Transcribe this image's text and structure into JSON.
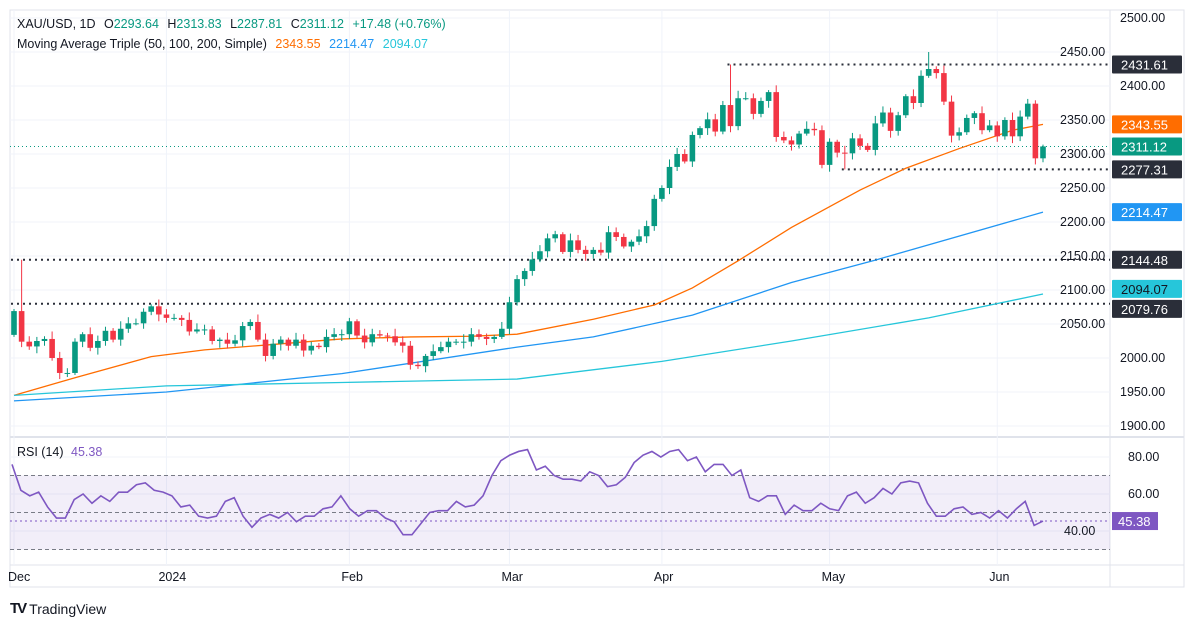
{
  "header": {
    "symbol": "XAU/USD, 1D",
    "open_label": "O",
    "open": "2293.64",
    "high_label": "H",
    "high": "2313.83",
    "low_label": "L",
    "low": "2287.81",
    "close_label": "C",
    "close": "2311.12",
    "change": "+17.48 (+0.76%)",
    "ma_title": "Moving Average Triple (50, 100, 200, Simple)",
    "ma50": "2343.55",
    "ma100": "2214.47",
    "ma200": "2094.07"
  },
  "rsi_legend": {
    "title": "RSI (14)",
    "value": "45.38"
  },
  "brand": {
    "logo": "TV",
    "name": "TradingView"
  },
  "colors": {
    "up": "#089981",
    "down": "#f23645",
    "ma50": "#ff6d00",
    "ma100": "#2196f3",
    "ma200": "#26c6da",
    "rsi": "#7e57c2",
    "level": "#2a2e39"
  },
  "chart_data": [
    {
      "type": "candlestick",
      "title": "XAU/USD, 1D",
      "ylim": [
        1900,
        2500
      ],
      "y_ticks": [
        "2500.00",
        "2450.00",
        "2400.00",
        "2350.00",
        "2300.00",
        "2250.00",
        "2200.00",
        "2150.00",
        "2100.00",
        "2050.00",
        "2000.00",
        "1950.00",
        "1900.00"
      ],
      "x_ticks": [
        {
          "label": "Dec",
          "bar": 0
        },
        {
          "label": "2024",
          "bar": 20
        },
        {
          "label": "Feb",
          "bar": 44
        },
        {
          "label": "Mar",
          "bar": 65
        },
        {
          "label": "Apr",
          "bar": 85
        },
        {
          "label": "May",
          "bar": 107
        },
        {
          "label": "Jun",
          "bar": 129
        }
      ],
      "first_open": 2034,
      "closes": [
        2069,
        2024,
        2017,
        2025,
        2028,
        2000,
        1978,
        1978,
        2024,
        2035,
        2015,
        2025,
        2040,
        2027,
        2043,
        2051,
        2051,
        2068,
        2076,
        2064,
        2059,
        2059,
        2056,
        2039,
        2042,
        2042,
        2025,
        2027,
        2021,
        2026,
        2047,
        2053,
        2027,
        2003,
        2021,
        2027,
        2018,
        2027,
        2011,
        2018,
        2016,
        2031,
        2035,
        2035,
        2054,
        2033,
        2023,
        2035,
        2033,
        2032,
        2023,
        2018,
        1990,
        1988,
        2003,
        2010,
        2016,
        2024,
        2024,
        2024,
        2035,
        2031,
        2028,
        2031,
        2043,
        2082,
        2116,
        2128,
        2145,
        2157,
        2176,
        2182,
        2156,
        2173,
        2159,
        2153,
        2159,
        2155,
        2185,
        2178,
        2164,
        2171,
        2179,
        2194,
        2234,
        2250,
        2281,
        2300,
        2289,
        2328,
        2338,
        2351,
        2333,
        2372,
        2341,
        2382,
        2382,
        2359,
        2378,
        2391,
        2325,
        2320,
        2314,
        2330,
        2337,
        2335,
        2284,
        2318,
        2302,
        2301,
        2323,
        2312,
        2306,
        2345,
        2361,
        2334,
        2357,
        2385,
        2375,
        2415,
        2425,
        2419,
        2377,
        2327,
        2332,
        2353,
        2360,
        2335,
        2342,
        2326,
        2350,
        2326,
        2355,
        2374,
        2293.64,
        2311.12
      ],
      "overrides": [
        {
          "bar": 1,
          "high": 2144.48
        },
        {
          "bar": 94,
          "high": 2431.61
        },
        {
          "bar": 120,
          "high": 2450
        },
        {
          "bar": 109,
          "low": 2277.31
        },
        {
          "bar": 135,
          "open": 2293.64,
          "high": 2313.83,
          "low": 2287.81,
          "close": 2311.12
        }
      ],
      "moving_averages": [
        {
          "name": "SMA 50",
          "last": "2343.55",
          "color_key": "ma50",
          "points": [
            [
              0,
              1945
            ],
            [
              8,
              1971
            ],
            [
              18,
              2002
            ],
            [
              25,
              2012
            ],
            [
              33,
              2019
            ],
            [
              43,
              2028
            ],
            [
              52,
              2031
            ],
            [
              60,
              2032
            ],
            [
              66,
              2035
            ],
            [
              76,
              2057
            ],
            [
              84,
              2078
            ],
            [
              89,
              2103
            ],
            [
              95,
              2143
            ],
            [
              102,
              2192
            ],
            [
              111,
              2247
            ],
            [
              117,
              2279
            ],
            [
              124,
              2308
            ],
            [
              131,
              2335
            ],
            [
              135,
              2343.55
            ]
          ]
        },
        {
          "name": "SMA 100",
          "last": "2214.47",
          "color_key": "ma100",
          "points": [
            [
              0,
              1937
            ],
            [
              20,
              1950
            ],
            [
              43,
              1977
            ],
            [
              66,
              2016
            ],
            [
              76,
              2031
            ],
            [
              89,
              2063
            ],
            [
              102,
              2111
            ],
            [
              113,
              2144
            ],
            [
              135,
              2214.47
            ]
          ]
        },
        {
          "name": "SMA 200",
          "last": "2094.07",
          "color_key": "ma200",
          "points": [
            [
              0,
              1945
            ],
            [
              20,
              1959
            ],
            [
              43,
              1964
            ],
            [
              66,
              1969
            ],
            [
              85,
              1995
            ],
            [
              102,
              2025
            ],
            [
              120,
              2059
            ],
            [
              135,
              2094.07
            ]
          ]
        }
      ],
      "levels": [
        {
          "value": 2431.61,
          "label": "2431.61",
          "from_bar": 94
        },
        {
          "value": 2277.31,
          "label": "2277.31",
          "from_bar": 109
        },
        {
          "value": 2144.48,
          "label": "2144.48",
          "from_bar": 0
        },
        {
          "value": 2079.76,
          "label": "2079.76",
          "from_bar": 0
        }
      ],
      "last_price": {
        "value": 2311.12,
        "label": "2311.12"
      }
    },
    {
      "type": "line",
      "title": "RSI (14)",
      "ylim": [
        25,
        90
      ],
      "y_ticks": [
        "80.00",
        "60.00",
        "40.00"
      ],
      "bands": {
        "upper": 70,
        "middle": 50,
        "lower": 30
      },
      "last": {
        "value": 45.38,
        "label": "45.38"
      },
      "values": [
        76,
        62,
        59,
        61,
        53,
        47,
        47,
        57,
        60,
        55,
        59,
        56,
        61,
        61,
        65,
        66,
        62,
        61,
        59,
        53,
        54,
        48,
        47,
        48,
        56,
        58,
        48,
        42,
        47,
        49,
        47,
        50,
        45,
        48,
        48,
        52,
        53,
        59,
        52,
        48,
        51,
        51,
        47,
        45,
        38,
        38,
        44,
        50,
        51,
        51,
        56,
        53,
        54,
        59,
        70,
        78,
        81,
        83,
        84,
        73,
        75,
        70,
        68,
        68,
        67,
        72,
        70,
        64,
        65,
        69,
        77,
        81,
        83,
        80,
        83,
        84,
        78,
        80,
        72,
        76,
        76,
        70,
        73,
        58,
        56,
        59,
        59,
        49,
        54,
        51,
        51,
        55,
        52,
        51,
        59,
        61,
        55,
        58,
        63,
        60,
        66,
        67,
        66,
        55,
        48,
        48,
        52,
        53,
        49,
        50,
        47,
        51,
        47,
        52,
        56,
        43,
        45.38
      ]
    }
  ]
}
